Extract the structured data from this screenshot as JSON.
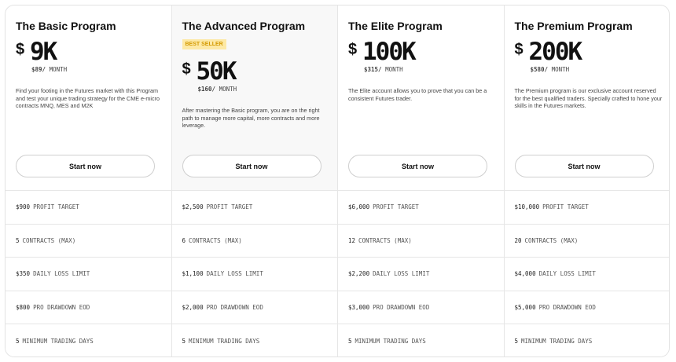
{
  "plans": [
    {
      "title": "The Basic Program",
      "currency": "$",
      "price": "9K",
      "monthly": "$89/",
      "period": "MONTH",
      "description": "Find your footing in the Futures market with this Program and test your unique trading strategy for the CME e-micro contracts MNQ, MES and M2K",
      "button": "Start now",
      "features": [
        {
          "value": "$900",
          "label": "PROFIT TARGET"
        },
        {
          "value": "5",
          "label": "CONTRACTS (MAX)"
        },
        {
          "value": "$350",
          "label": "DAILY LOSS LIMIT"
        },
        {
          "value": "$800",
          "label": "PRO DRAWDOWN EOD"
        },
        {
          "value": "5",
          "label": "MINIMUM TRADING DAYS"
        }
      ]
    },
    {
      "title": "The Advanced Program",
      "badge": "BEST SELLER",
      "currency": "$",
      "price": "50K",
      "monthly": "$160/",
      "period": "MONTH",
      "description": "After mastering the Basic program, you are on the right path to manage more capital, more contracts and more leverage.",
      "button": "Start now",
      "features": [
        {
          "value": "$2,500",
          "label": "PROFIT TARGET"
        },
        {
          "value": "6",
          "label": "CONTRACTS (MAX)"
        },
        {
          "value": "$1,100",
          "label": "DAILY LOSS LIMIT"
        },
        {
          "value": "$2,000",
          "label": "PRO DRAWDOWN EOD"
        },
        {
          "value": "5",
          "label": "MINIMUM TRADING DAYS"
        }
      ]
    },
    {
      "title": "The Elite Program",
      "currency": "$",
      "price": "100K",
      "monthly": "$315/",
      "period": "MONTH",
      "description": "The Elite account allows you to prove that you can be a consistent Futures trader.",
      "button": "Start now",
      "features": [
        {
          "value": "$6,000",
          "label": "PROFIT TARGET"
        },
        {
          "value": "12",
          "label": "CONTRACTS (MAX)"
        },
        {
          "value": "$2,200",
          "label": "DAILY LOSS LIMIT"
        },
        {
          "value": "$3,000",
          "label": "PRO DRAWDOWN EOD"
        },
        {
          "value": "5",
          "label": "MINIMUM TRADING DAYS"
        }
      ]
    },
    {
      "title": "The Premium Program",
      "currency": "$",
      "price": "200K",
      "monthly": "$580/",
      "period": "MONTH",
      "description": "The Premium program is our exclusive account reserved for the best qualified traders. Specially crafted to hone your skills in the Futures markets.",
      "button": "Start now",
      "features": [
        {
          "value": "$10,000",
          "label": "PROFIT TARGET"
        },
        {
          "value": "20",
          "label": "CONTRACTS (MAX)"
        },
        {
          "value": "$4,000",
          "label": "DAILY LOSS LIMIT"
        },
        {
          "value": "$5,000",
          "label": "PRO DRAWDOWN EOD"
        },
        {
          "value": "5",
          "label": "MINIMUM TRADING DAYS"
        }
      ]
    }
  ]
}
